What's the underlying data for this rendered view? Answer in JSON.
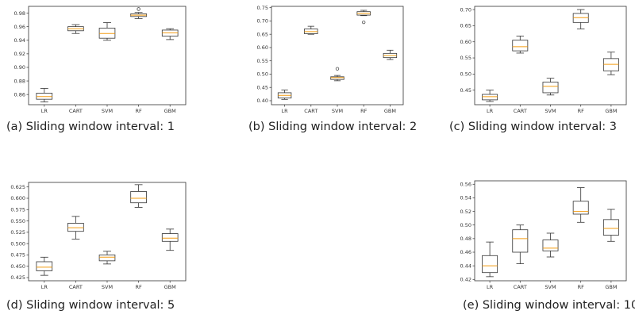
{
  "colors": {
    "median": "#f39c12",
    "box": "#333333",
    "frame": "#333333"
  },
  "chart_data": [
    {
      "type": "box",
      "caption": "(a) Sliding window interval: 1",
      "categories": [
        "LR",
        "CART",
        "SVM",
        "RF",
        "GBM"
      ],
      "ylim": [
        0.845,
        0.99
      ],
      "yticks": [
        0.86,
        0.88,
        0.9,
        0.92,
        0.94,
        0.96,
        0.98
      ],
      "ytick_labels": [
        "0.86",
        "0.88",
        "0.90",
        "0.92",
        "0.94",
        "0.96",
        "0.98"
      ],
      "boxes": [
        {
          "min": 0.849,
          "q1": 0.853,
          "median": 0.857,
          "q3": 0.862,
          "max": 0.869,
          "outliers": []
        },
        {
          "min": 0.95,
          "q1": 0.954,
          "median": 0.957,
          "q3": 0.96,
          "max": 0.963,
          "outliers": []
        },
        {
          "min": 0.94,
          "q1": 0.943,
          "median": 0.95,
          "q3": 0.958,
          "max": 0.966,
          "outliers": []
        },
        {
          "min": 0.972,
          "q1": 0.975,
          "median": 0.977,
          "q3": 0.979,
          "max": 0.981,
          "outliers": [
            0.986
          ]
        },
        {
          "min": 0.941,
          "q1": 0.946,
          "median": 0.951,
          "q3": 0.955,
          "max": 0.957,
          "outliers": []
        }
      ]
    },
    {
      "type": "box",
      "caption": "(b) Sliding window interval: 2",
      "categories": [
        "LR",
        "CART",
        "SVM",
        "RF",
        "GBM"
      ],
      "ylim": [
        0.385,
        0.755
      ],
      "yticks": [
        0.4,
        0.45,
        0.5,
        0.55,
        0.6,
        0.65,
        0.7,
        0.75
      ],
      "ytick_labels": [
        "0.40",
        "0.45",
        "0.50",
        "0.55",
        "0.60",
        "0.65",
        "0.70",
        "0.75"
      ],
      "boxes": [
        {
          "min": 0.405,
          "q1": 0.41,
          "median": 0.42,
          "q3": 0.43,
          "max": 0.44,
          "outliers": []
        },
        {
          "min": 0.65,
          "q1": 0.652,
          "median": 0.66,
          "q3": 0.67,
          "max": 0.68,
          "outliers": []
        },
        {
          "min": 0.475,
          "q1": 0.48,
          "median": 0.487,
          "q3": 0.49,
          "max": 0.495,
          "outliers": [
            0.52
          ]
        },
        {
          "min": 0.72,
          "q1": 0.722,
          "median": 0.728,
          "q3": 0.735,
          "max": 0.74,
          "outliers": [
            0.695
          ]
        },
        {
          "min": 0.555,
          "q1": 0.562,
          "median": 0.57,
          "q3": 0.578,
          "max": 0.59,
          "outliers": []
        }
      ]
    },
    {
      "type": "box",
      "caption": "(c) Sliding window interval: 3",
      "categories": [
        "LR",
        "CART",
        "SVM",
        "RF",
        "GBM"
      ],
      "ylim": [
        0.405,
        0.71
      ],
      "yticks": [
        0.45,
        0.5,
        0.55,
        0.6,
        0.65,
        0.7
      ],
      "ytick_labels": [
        "0.45",
        "0.50",
        "0.55",
        "0.60",
        "0.65",
        "0.70"
      ],
      "boxes": [
        {
          "min": 0.415,
          "q1": 0.42,
          "median": 0.43,
          "q3": 0.437,
          "max": 0.45,
          "outliers": []
        },
        {
          "min": 0.565,
          "q1": 0.572,
          "median": 0.585,
          "q3": 0.605,
          "max": 0.618,
          "outliers": []
        },
        {
          "min": 0.435,
          "q1": 0.442,
          "median": 0.462,
          "q3": 0.475,
          "max": 0.487,
          "outliers": []
        },
        {
          "min": 0.64,
          "q1": 0.66,
          "median": 0.675,
          "q3": 0.688,
          "max": 0.7,
          "outliers": []
        },
        {
          "min": 0.498,
          "q1": 0.51,
          "median": 0.53,
          "q3": 0.548,
          "max": 0.568,
          "outliers": []
        }
      ]
    },
    {
      "type": "box",
      "caption": "(d) Sliding window interval: 5",
      "categories": [
        "LR",
        "CART",
        "SVM",
        "RF",
        "GBM"
      ],
      "ylim": [
        0.418,
        0.635
      ],
      "yticks": [
        0.425,
        0.45,
        0.475,
        0.5,
        0.525,
        0.55,
        0.575,
        0.6,
        0.625
      ],
      "ytick_labels": [
        "0.425",
        "0.450",
        "0.475",
        "0.500",
        "0.525",
        "0.550",
        "0.575",
        "0.600",
        "0.625"
      ],
      "boxes": [
        {
          "min": 0.43,
          "q1": 0.44,
          "median": 0.448,
          "q3": 0.46,
          "max": 0.47,
          "outliers": []
        },
        {
          "min": 0.51,
          "q1": 0.527,
          "median": 0.535,
          "q3": 0.545,
          "max": 0.56,
          "outliers": []
        },
        {
          "min": 0.455,
          "q1": 0.462,
          "median": 0.47,
          "q3": 0.475,
          "max": 0.483,
          "outliers": []
        },
        {
          "min": 0.58,
          "q1": 0.59,
          "median": 0.6,
          "q3": 0.615,
          "max": 0.63,
          "outliers": []
        },
        {
          "min": 0.485,
          "q1": 0.505,
          "median": 0.512,
          "q3": 0.522,
          "max": 0.532,
          "outliers": []
        }
      ]
    },
    {
      "type": "box",
      "caption": "(e) Sliding window interval: 10",
      "categories": [
        "LR",
        "CART",
        "SVM",
        "RF",
        "GBM"
      ],
      "ylim": [
        0.418,
        0.565
      ],
      "yticks": [
        0.42,
        0.44,
        0.46,
        0.48,
        0.5,
        0.52,
        0.54,
        0.56
      ],
      "ytick_labels": [
        "0.42",
        "0.44",
        "0.46",
        "0.48",
        "0.50",
        "0.52",
        "0.54",
        "0.56"
      ],
      "boxes": [
        {
          "min": 0.424,
          "q1": 0.43,
          "median": 0.44,
          "q3": 0.455,
          "max": 0.475,
          "outliers": []
        },
        {
          "min": 0.443,
          "q1": 0.46,
          "median": 0.48,
          "q3": 0.493,
          "max": 0.5,
          "outliers": []
        },
        {
          "min": 0.453,
          "q1": 0.462,
          "median": 0.466,
          "q3": 0.478,
          "max": 0.488,
          "outliers": []
        },
        {
          "min": 0.504,
          "q1": 0.516,
          "median": 0.52,
          "q3": 0.535,
          "max": 0.555,
          "outliers": []
        },
        {
          "min": 0.476,
          "q1": 0.485,
          "median": 0.495,
          "q3": 0.508,
          "max": 0.523,
          "outliers": []
        }
      ]
    }
  ]
}
